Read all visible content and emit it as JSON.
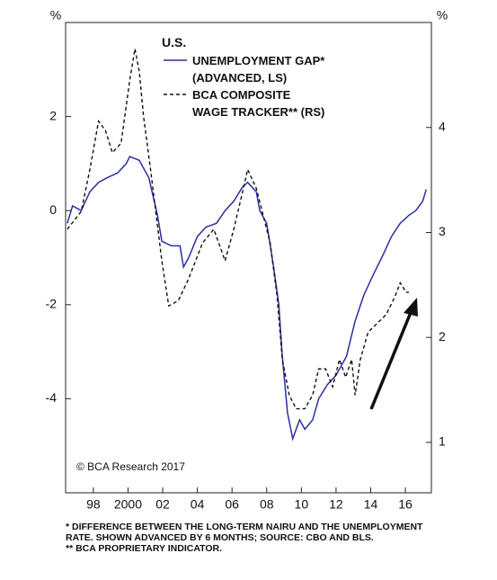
{
  "chart_data": {
    "type": "line",
    "legend_title": "U.S.",
    "y_unit": "%",
    "y2_unit": "%",
    "annotation": "© BCA Research 2017",
    "notes": [
      "*  DIFFERENCE BETWEEN THE LONG-TERM NAIRU AND THE UNEMPLOYMENT\nRATE. SHOWN ADVANCED BY 6 MONTHS; SOURCE: CBO AND BLS.",
      "** BCA PROPRIETARY INDICATOR."
    ],
    "xlim": [
      1996.4,
      2017.5
    ],
    "xticks": [
      {
        "value": 1998,
        "label": "98"
      },
      {
        "value": 2000,
        "label": "2000"
      },
      {
        "value": 2002,
        "label": "02"
      },
      {
        "value": 2004,
        "label": "04"
      },
      {
        "value": 2006,
        "label": "06"
      },
      {
        "value": 2008,
        "label": "08"
      },
      {
        "value": 2010,
        "label": "10"
      },
      {
        "value": 2012,
        "label": "12"
      },
      {
        "value": 2014,
        "label": "14"
      },
      {
        "value": 2016,
        "label": "16"
      }
    ],
    "ylim": [
      -6,
      4
    ],
    "yticks": [
      -4,
      -2,
      0,
      2
    ],
    "y2lim": [
      0.52,
      5.0
    ],
    "y2ticks": [
      1,
      2,
      3,
      4
    ],
    "series": [
      {
        "name": "UNEMPLOYMENT GAP*\n(ADVANCED, LS)",
        "color": "#2b2fa0",
        "dash": false,
        "axis": "y",
        "x": [
          1996.5,
          1996.8,
          1997.3,
          1997.8,
          1998.3,
          1998.8,
          1999.4,
          1999.9,
          2000.1,
          2000.65,
          2001.2,
          2001.7,
          2001.95,
          2002.5,
          2003,
          2003.2,
          2003.5,
          2004,
          2004.5,
          2005.1,
          2005.6,
          2006.1,
          2006.6,
          2006.9,
          2007.4,
          2007.6,
          2008,
          2008.4,
          2008.7,
          2008.9,
          2009.2,
          2009.5,
          2009.9,
          2010.2,
          2010.65,
          2011,
          2011.5,
          2012,
          2012.6,
          2013.1,
          2013.6,
          2014.1,
          2014.7,
          2015.2,
          2015.7,
          2016.2,
          2016.6,
          2017,
          2017.2
        ],
        "values": [
          -0.27,
          0.1,
          0,
          0.4,
          0.6,
          0.7,
          0.8,
          1.0,
          1.15,
          1.07,
          0.7,
          -0.1,
          -0.65,
          -0.75,
          -0.75,
          -1.2,
          -1.0,
          -0.55,
          -0.35,
          -0.27,
          0,
          0.2,
          0.5,
          0.6,
          0.4,
          0,
          -0.27,
          -1.2,
          -2.0,
          -3.1,
          -4.3,
          -4.85,
          -4.45,
          -4.65,
          -4.45,
          -4.0,
          -3.7,
          -3.5,
          -3.1,
          -2.35,
          -1.8,
          -1.4,
          -0.95,
          -0.55,
          -0.27,
          -0.1,
          0,
          0.2,
          0.45
        ]
      },
      {
        "name": "BCA COMPOSITE\nWAGE TRACKER** (RS)",
        "color": "#111111",
        "dash": true,
        "axis": "y2",
        "x": [
          1996.5,
          1997.3,
          1997.8,
          1998.3,
          1998.7,
          1999.1,
          1999.6,
          2000.1,
          2000.4,
          2000.65,
          2000.9,
          2001.3,
          2001.95,
          2002.35,
          2002.9,
          2003.5,
          2004.3,
          2004.95,
          2005.6,
          2006.1,
          2006.6,
          2006.9,
          2007.4,
          2007.8,
          2008.2,
          2008.6,
          2008.9,
          2009.3,
          2009.7,
          2010.2,
          2010.65,
          2011,
          2011.4,
          2011.8,
          2012.2,
          2012.55,
          2012.9,
          2013.1,
          2013.4,
          2013.85,
          2014.35,
          2014.9,
          2015.4,
          2015.7,
          2016.05,
          2016.2
        ],
        "values": [
          3.03,
          3.2,
          3.6,
          4.06,
          3.97,
          3.76,
          3.85,
          4.45,
          4.75,
          4.53,
          4.1,
          3.6,
          2.73,
          2.3,
          2.35,
          2.56,
          2.9,
          3.03,
          2.73,
          3.03,
          3.38,
          3.6,
          3.42,
          3.16,
          2.9,
          2.39,
          1.79,
          1.45,
          1.32,
          1.32,
          1.45,
          1.7,
          1.7,
          1.53,
          1.79,
          1.62,
          1.79,
          1.45,
          1.79,
          2.05,
          2.13,
          2.22,
          2.39,
          2.52,
          2.43,
          2.43
        ]
      }
    ]
  }
}
